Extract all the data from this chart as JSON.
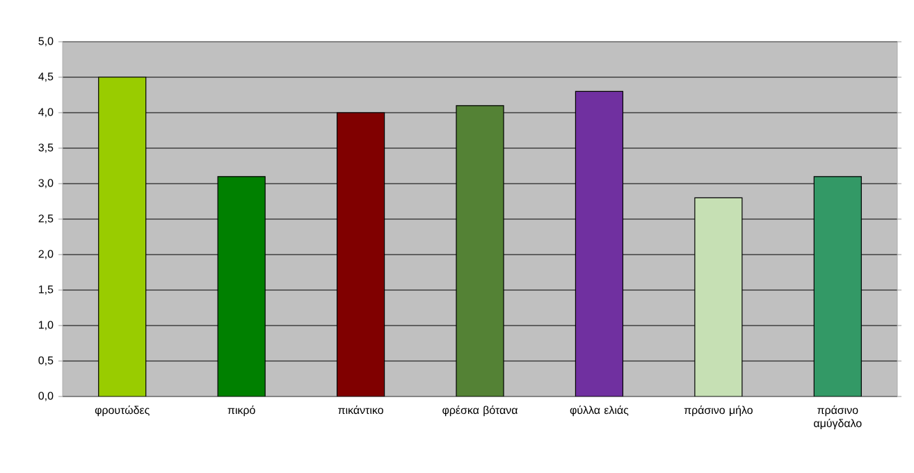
{
  "chart_data": {
    "type": "bar",
    "categories": [
      "φρουτώδες",
      "πικρό",
      "πικάντικο",
      "φρέσκα βότανα",
      "φύλλα ελιάς",
      "πράσινο μήλο",
      "πράσινο αμύγδαλο"
    ],
    "values": [
      4.5,
      3.1,
      4.0,
      4.1,
      4.3,
      2.8,
      3.1
    ],
    "colors": [
      "#99cc00",
      "#008000",
      "#800000",
      "#548235",
      "#7030a0",
      "#c6e0b4",
      "#339966"
    ],
    "ylim": [
      0,
      5
    ],
    "yticks": [
      {
        "value": 0,
        "label": "0,0"
      },
      {
        "value": 0.5,
        "label": "0,5"
      },
      {
        "value": 1,
        "label": "1,0"
      },
      {
        "value": 1.5,
        "label": "1,5"
      },
      {
        "value": 2,
        "label": "2,0"
      },
      {
        "value": 2.5,
        "label": "2,5"
      },
      {
        "value": 3,
        "label": "3,0"
      },
      {
        "value": 3.5,
        "label": "3,5"
      },
      {
        "value": 4,
        "label": "4,0"
      },
      {
        "value": 4.5,
        "label": "4,5"
      },
      {
        "value": 5,
        "label": "5,0"
      }
    ],
    "grid": "y"
  }
}
